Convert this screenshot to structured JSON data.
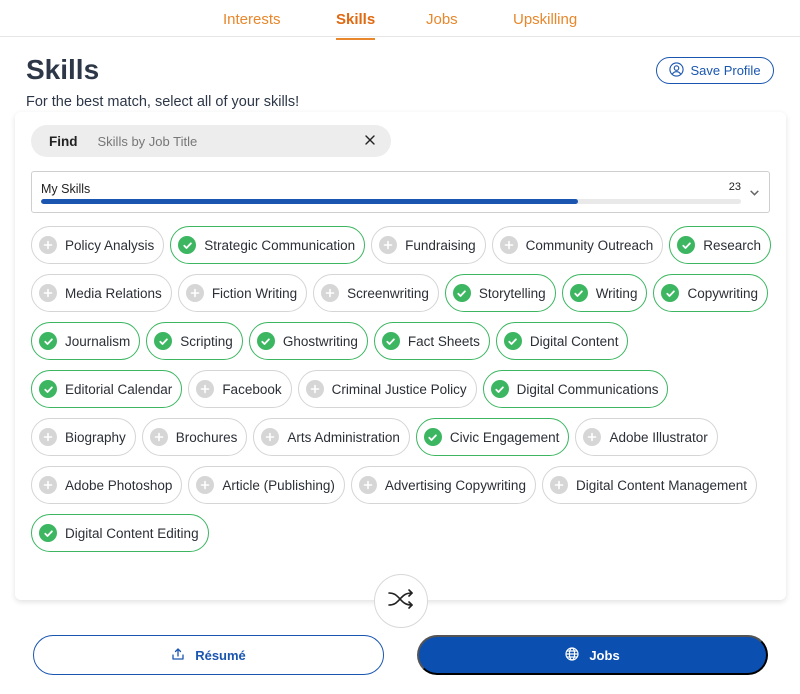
{
  "nav": {
    "tabs": [
      {
        "label": "Interests",
        "active": false
      },
      {
        "label": "Skills",
        "active": true
      },
      {
        "label": "Jobs",
        "active": false
      },
      {
        "label": "Upskilling",
        "active": false
      }
    ]
  },
  "header": {
    "title": "Skills",
    "subtitle": "For the best match, select all of your skills!",
    "save_label": "Save Profile"
  },
  "find": {
    "label": "Find",
    "placeholder": "Skills by Job Title",
    "value": ""
  },
  "my_skills": {
    "label": "My Skills",
    "count": "23",
    "progress_fraction": 0.767
  },
  "skills": [
    [
      {
        "label": "Policy Analysis",
        "selected": false
      },
      {
        "label": "Strategic Communication",
        "selected": true
      },
      {
        "label": "Fundraising",
        "selected": false
      },
      {
        "label": "Community Outreach",
        "selected": false
      },
      {
        "label": "Research",
        "selected": true
      }
    ],
    [
      {
        "label": "Media Relations",
        "selected": false
      },
      {
        "label": "Fiction Writing",
        "selected": false
      },
      {
        "label": "Screenwriting",
        "selected": false
      },
      {
        "label": "Storytelling",
        "selected": true
      },
      {
        "label": "Writing",
        "selected": true
      },
      {
        "label": "Copywriting",
        "selected": true
      }
    ],
    [
      {
        "label": "Journalism",
        "selected": true
      },
      {
        "label": "Scripting",
        "selected": true
      },
      {
        "label": "Ghostwriting",
        "selected": true
      },
      {
        "label": "Fact Sheets",
        "selected": true
      },
      {
        "label": "Digital Content",
        "selected": true
      }
    ],
    [
      {
        "label": "Editorial Calendar",
        "selected": true
      },
      {
        "label": "Facebook",
        "selected": false
      },
      {
        "label": "Criminal Justice Policy",
        "selected": false
      },
      {
        "label": "Digital Communications",
        "selected": true
      }
    ],
    [
      {
        "label": "Biography",
        "selected": false
      },
      {
        "label": "Brochures",
        "selected": false
      },
      {
        "label": "Arts Administration",
        "selected": false
      },
      {
        "label": "Civic Engagement",
        "selected": true
      },
      {
        "label": "Adobe Illustrator",
        "selected": false
      }
    ],
    [
      {
        "label": "Adobe Photoshop",
        "selected": false
      },
      {
        "label": "Article (Publishing)",
        "selected": false
      },
      {
        "label": "Advertising Copywriting",
        "selected": false
      },
      {
        "label": "Digital Content Management",
        "selected": false
      }
    ],
    [
      {
        "label": "Digital Content Editing",
        "selected": true
      }
    ]
  ],
  "icons": {
    "save": "user-circle-icon",
    "clear": "close-icon",
    "dropdown": "chevron-down-icon",
    "shuffle": "shuffle-icon",
    "resume": "upload-icon",
    "jobs": "globe-icon"
  },
  "footer": {
    "resume_label": "Résumé",
    "jobs_label": "Jobs"
  },
  "colors": {
    "accent_orange": "#e8872b",
    "primary_blue": "#1a56b0",
    "selected_green": "#3cb661"
  }
}
